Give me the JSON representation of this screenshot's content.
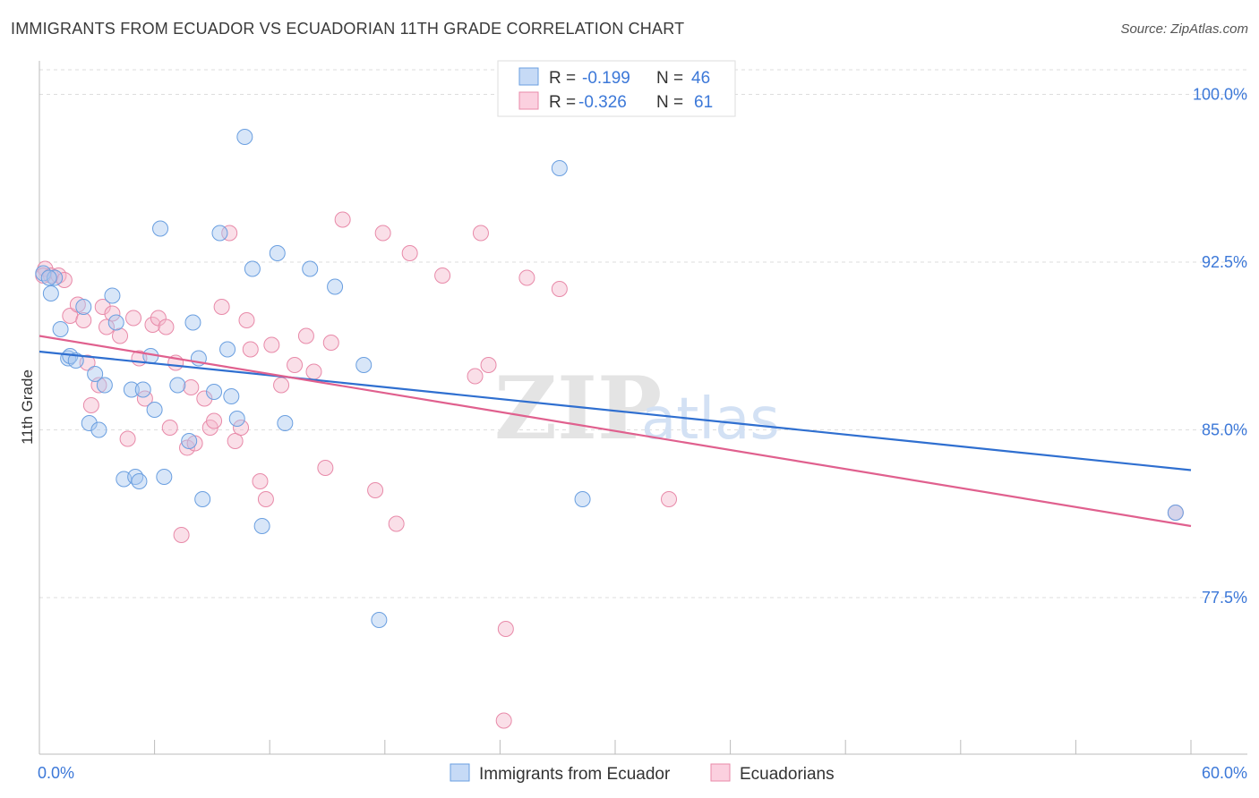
{
  "title": "IMMIGRANTS FROM ECUADOR VS ECUADORIAN 11TH GRADE CORRELATION CHART",
  "source": "Source: ZipAtlas.com",
  "watermark": {
    "zip": "ZIP",
    "atlas": "atlas"
  },
  "colors": {
    "blue_fill": "#a9c7f0",
    "blue_stroke": "#6a9fe0",
    "blue_line": "#2f6fd0",
    "pink_fill": "#f5b8cc",
    "pink_stroke": "#e88aa9",
    "pink_line": "#e0608e",
    "grid": "#dddddd",
    "tick_text": "#3c78d8"
  },
  "chart_data": {
    "type": "scatter",
    "title": "IMMIGRANTS FROM ECUADOR VS ECUADORIAN 11TH GRADE CORRELATION CHART",
    "xlabel": "",
    "ylabel": "11th Grade",
    "xlim": [
      0,
      60
    ],
    "ylim": [
      70.5,
      101.5
    ],
    "x_tick_labels": {
      "min": "0.0%",
      "max": "60.0%"
    },
    "y_ticks": [
      {
        "value": 100.0,
        "label": "100.0%"
      },
      {
        "value": 92.5,
        "label": "92.5%"
      },
      {
        "value": 85.0,
        "label": "85.0%"
      },
      {
        "value": 77.5,
        "label": "77.5%"
      }
    ],
    "legend": {
      "position": "top-center",
      "entries": [
        {
          "r_label": "R =",
          "r_value": "-0.199",
          "n_label": "N =",
          "n_value": "46",
          "color": "blue"
        },
        {
          "r_label": "R =",
          "r_value": "-0.326",
          "n_label": "N =",
          "n_value": "61",
          "color": "pink"
        }
      ]
    },
    "series": [
      {
        "name": "Immigrants from Ecuador",
        "color": "blue",
        "trend": {
          "x": [
            0,
            60
          ],
          "y": [
            88.5,
            83.2
          ]
        },
        "points": [
          [
            0.2,
            92.0
          ],
          [
            0.8,
            91.8
          ],
          [
            0.6,
            91.1
          ],
          [
            1.1,
            89.5
          ],
          [
            1.5,
            88.2
          ],
          [
            1.6,
            88.3
          ],
          [
            1.9,
            88.1
          ],
          [
            2.3,
            90.5
          ],
          [
            2.6,
            85.3
          ],
          [
            2.9,
            87.5
          ],
          [
            3.1,
            85.0
          ],
          [
            3.4,
            87.0
          ],
          [
            3.8,
            91.0
          ],
          [
            4.0,
            89.8
          ],
          [
            4.4,
            82.8
          ],
          [
            4.8,
            86.8
          ],
          [
            5.0,
            82.9
          ],
          [
            5.2,
            82.7
          ],
          [
            5.4,
            86.8
          ],
          [
            5.8,
            88.3
          ],
          [
            6.0,
            85.9
          ],
          [
            6.3,
            94.0
          ],
          [
            6.5,
            82.9
          ],
          [
            7.2,
            87.0
          ],
          [
            7.8,
            84.5
          ],
          [
            8.0,
            89.8
          ],
          [
            8.3,
            88.2
          ],
          [
            8.5,
            81.9
          ],
          [
            9.1,
            86.7
          ],
          [
            9.4,
            93.8
          ],
          [
            9.8,
            88.6
          ],
          [
            10.0,
            86.5
          ],
          [
            10.3,
            85.5
          ],
          [
            10.7,
            98.1
          ],
          [
            11.1,
            92.2
          ],
          [
            11.6,
            80.7
          ],
          [
            12.4,
            92.9
          ],
          [
            12.8,
            85.3
          ],
          [
            14.1,
            92.2
          ],
          [
            15.4,
            91.4
          ],
          [
            16.9,
            87.9
          ],
          [
            17.7,
            76.5
          ],
          [
            27.1,
            96.7
          ],
          [
            28.3,
            81.9
          ],
          [
            59.2,
            81.3
          ],
          [
            0.5,
            91.8
          ]
        ]
      },
      {
        "name": "Ecuadorians",
        "color": "pink",
        "trend": {
          "x": [
            0,
            60
          ],
          "y": [
            89.2,
            80.7
          ]
        },
        "points": [
          [
            0.3,
            92.2
          ],
          [
            0.6,
            91.9
          ],
          [
            1.0,
            91.9
          ],
          [
            1.3,
            91.7
          ],
          [
            1.6,
            90.1
          ],
          [
            2.0,
            90.6
          ],
          [
            2.3,
            89.9
          ],
          [
            2.5,
            88.0
          ],
          [
            2.7,
            86.1
          ],
          [
            3.1,
            87.0
          ],
          [
            3.3,
            90.5
          ],
          [
            3.5,
            89.6
          ],
          [
            3.8,
            90.2
          ],
          [
            4.2,
            89.2
          ],
          [
            4.6,
            84.6
          ],
          [
            4.9,
            90.0
          ],
          [
            5.2,
            88.2
          ],
          [
            5.5,
            86.4
          ],
          [
            5.9,
            89.7
          ],
          [
            6.2,
            90.0
          ],
          [
            6.6,
            89.6
          ],
          [
            6.8,
            85.1
          ],
          [
            7.1,
            88.0
          ],
          [
            7.4,
            80.3
          ],
          [
            7.7,
            84.2
          ],
          [
            7.9,
            86.9
          ],
          [
            8.1,
            84.4
          ],
          [
            8.6,
            86.4
          ],
          [
            8.9,
            85.1
          ],
          [
            9.1,
            85.4
          ],
          [
            9.5,
            90.5
          ],
          [
            9.9,
            93.8
          ],
          [
            10.2,
            84.5
          ],
          [
            10.5,
            85.1
          ],
          [
            10.8,
            89.9
          ],
          [
            11.0,
            88.6
          ],
          [
            11.5,
            82.7
          ],
          [
            11.8,
            81.9
          ],
          [
            12.1,
            88.8
          ],
          [
            12.6,
            87.0
          ],
          [
            13.3,
            87.9
          ],
          [
            13.9,
            89.2
          ],
          [
            14.3,
            87.6
          ],
          [
            14.9,
            83.3
          ],
          [
            15.2,
            88.9
          ],
          [
            15.8,
            94.4
          ],
          [
            17.5,
            82.3
          ],
          [
            17.9,
            93.8
          ],
          [
            18.6,
            80.8
          ],
          [
            19.3,
            92.9
          ],
          [
            21.0,
            91.9
          ],
          [
            22.7,
            87.4
          ],
          [
            23.0,
            93.8
          ],
          [
            23.4,
            87.9
          ],
          [
            24.3,
            76.1
          ],
          [
            24.2,
            72.0
          ],
          [
            25.4,
            91.8
          ],
          [
            27.1,
            91.3
          ],
          [
            32.8,
            81.9
          ],
          [
            59.2,
            81.3
          ],
          [
            0.2,
            91.9
          ]
        ]
      }
    ]
  },
  "bottom_legend": [
    {
      "label": "Immigrants from Ecuador",
      "color": "blue"
    },
    {
      "label": "Ecuadorians",
      "color": "pink"
    }
  ]
}
